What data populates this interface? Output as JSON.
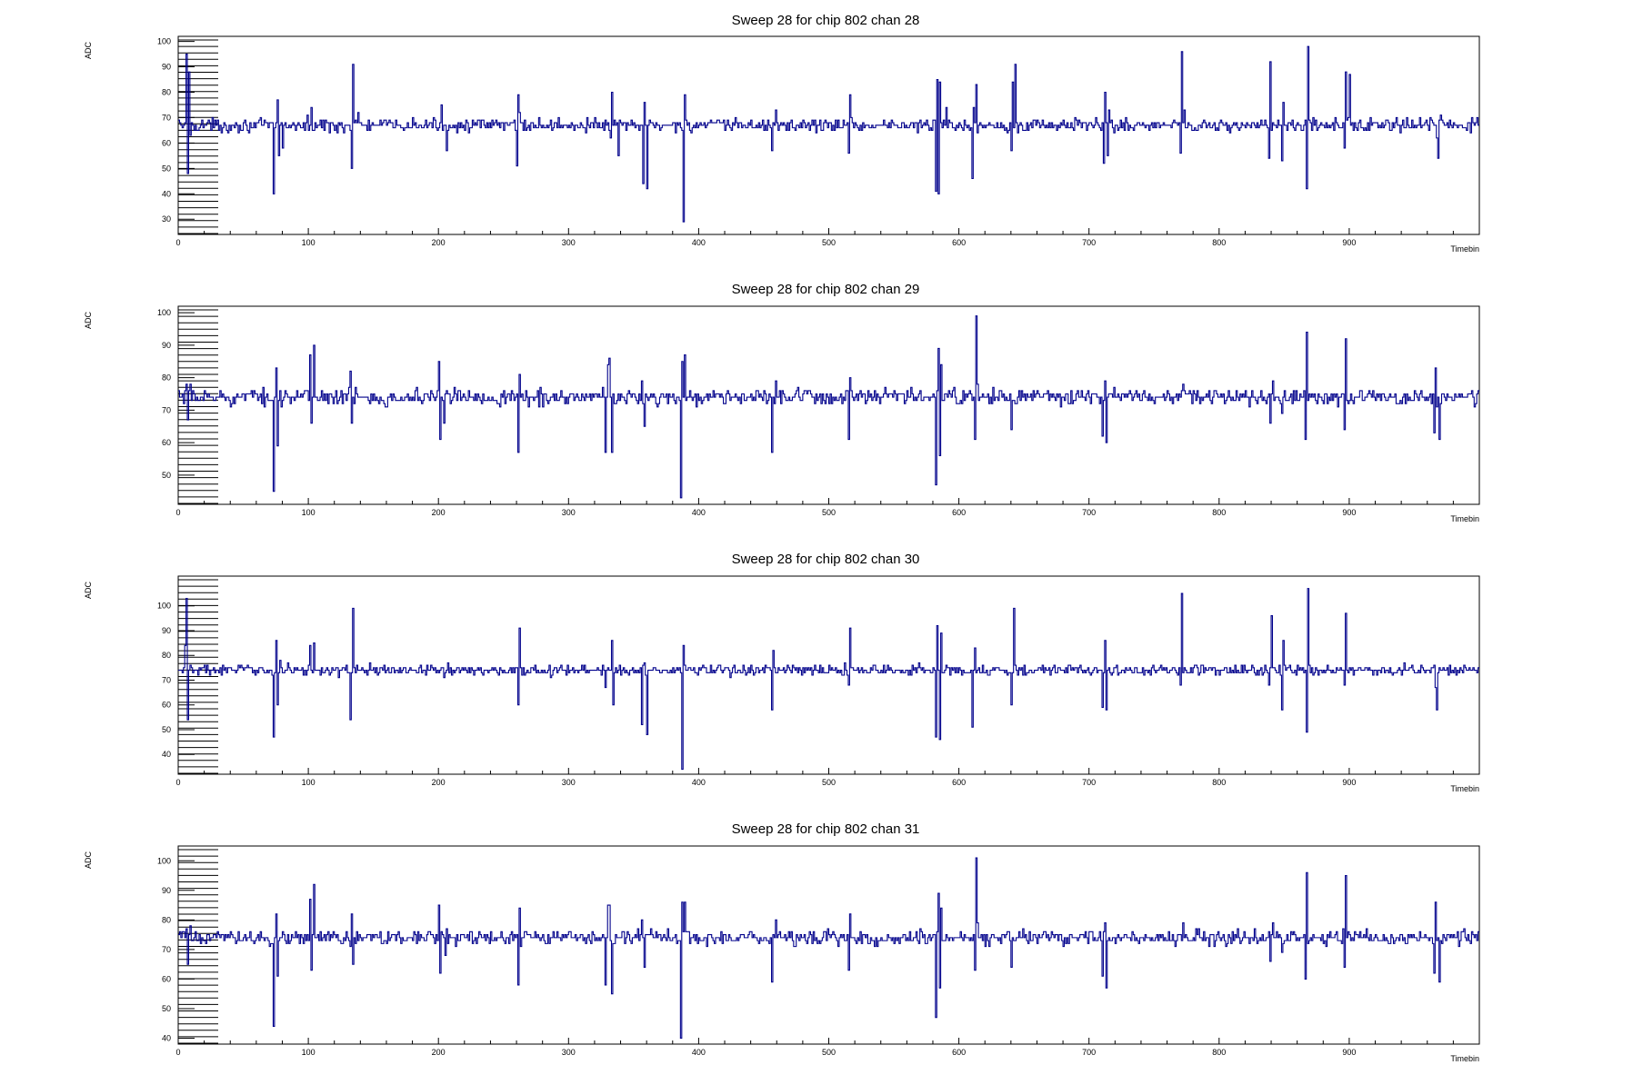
{
  "chart_data": [
    {
      "type": "line",
      "title": "Sweep 28 for chip 802 chan 28",
      "xlabel": "Timebin",
      "ylabel": "ADC",
      "xlim": [
        0,
        1000
      ],
      "ylim": [
        24,
        102
      ],
      "xticks": [
        0,
        100,
        200,
        300,
        400,
        500,
        600,
        700,
        800,
        900
      ],
      "yticks": [
        30,
        40,
        50,
        60,
        70,
        80,
        90,
        100
      ],
      "baseline": 67,
      "noise": 1.6,
      "series": [
        {
          "color": "#00008b",
          "spikes": [
            [
              6,
              95
            ],
            [
              7,
              48
            ],
            [
              8,
              88
            ],
            [
              9,
              63
            ],
            [
              73,
              40
            ],
            [
              74,
              66
            ],
            [
              76,
              77
            ],
            [
              77,
              55
            ],
            [
              80,
              58
            ],
            [
              102,
              74
            ],
            [
              133,
              50
            ],
            [
              134,
              91
            ],
            [
              138,
              72
            ],
            [
              202,
              75
            ],
            [
              206,
              57
            ],
            [
              260,
              51
            ],
            [
              261,
              79
            ],
            [
              262,
              72
            ],
            [
              332,
              62
            ],
            [
              333,
              80
            ],
            [
              338,
              55
            ],
            [
              357,
              44
            ],
            [
              358,
              76
            ],
            [
              360,
              42
            ],
            [
              388,
              29
            ],
            [
              389,
              79
            ],
            [
              456,
              57
            ],
            [
              459,
              73
            ],
            [
              515,
              56
            ],
            [
              516,
              79
            ],
            [
              582,
              41
            ],
            [
              583,
              85
            ],
            [
              584,
              40
            ],
            [
              585,
              84
            ],
            [
              590,
              74
            ],
            [
              610,
              46
            ],
            [
              611,
              74
            ],
            [
              613,
              83
            ],
            [
              640,
              57
            ],
            [
              641,
              84
            ],
            [
              643,
              91
            ],
            [
              711,
              52
            ],
            [
              712,
              80
            ],
            [
              714,
              55
            ],
            [
              715,
              73
            ],
            [
              770,
              56
            ],
            [
              771,
              96
            ],
            [
              773,
              73
            ],
            [
              838,
              54
            ],
            [
              839,
              92
            ],
            [
              848,
              53
            ],
            [
              849,
              76
            ],
            [
              867,
              42
            ],
            [
              868,
              98
            ],
            [
              896,
              58
            ],
            [
              897,
              88
            ],
            [
              900,
              87
            ],
            [
              967,
              62
            ],
            [
              968,
              54
            ],
            [
              970,
              71
            ]
          ]
        }
      ]
    },
    {
      "type": "line",
      "title": "Sweep 28 for chip 802 chan 29",
      "xlabel": "Timebin",
      "ylabel": "ADC",
      "xlim": [
        0,
        1000
      ],
      "ylim": [
        41,
        102
      ],
      "xticks": [
        0,
        100,
        200,
        300,
        400,
        500,
        600,
        700,
        800,
        900
      ],
      "yticks": [
        50,
        60,
        70,
        80,
        90,
        100
      ],
      "baseline": 74,
      "noise": 1.5,
      "series": [
        {
          "color": "#00008b",
          "spikes": [
            [
              6,
              78
            ],
            [
              7,
              67
            ],
            [
              9,
              78
            ],
            [
              73,
              45
            ],
            [
              75,
              83
            ],
            [
              76,
              59
            ],
            [
              101,
              87
            ],
            [
              102,
              66
            ],
            [
              104,
              90
            ],
            [
              132,
              82
            ],
            [
              133,
              66
            ],
            [
              200,
              85
            ],
            [
              201,
              61
            ],
            [
              204,
              66
            ],
            [
              261,
              57
            ],
            [
              262,
              81
            ],
            [
              328,
              57
            ],
            [
              330,
              84
            ],
            [
              331,
              86
            ],
            [
              333,
              57
            ],
            [
              356,
              79
            ],
            [
              358,
              65
            ],
            [
              386,
              43
            ],
            [
              387,
              85
            ],
            [
              389,
              87
            ],
            [
              456,
              57
            ],
            [
              459,
              79
            ],
            [
              515,
              61
            ],
            [
              516,
              80
            ],
            [
              582,
              47
            ],
            [
              584,
              89
            ],
            [
              585,
              56
            ],
            [
              586,
              84
            ],
            [
              612,
              61
            ],
            [
              613,
              99
            ],
            [
              614,
              78
            ],
            [
              640,
              64
            ],
            [
              710,
              62
            ],
            [
              712,
              79
            ],
            [
              713,
              60
            ],
            [
              772,
              78
            ],
            [
              839,
              66
            ],
            [
              841,
              79
            ],
            [
              848,
              69
            ],
            [
              866,
              61
            ],
            [
              867,
              94
            ],
            [
              896,
              64
            ],
            [
              897,
              92
            ],
            [
              965,
              63
            ],
            [
              966,
              83
            ],
            [
              969,
              61
            ]
          ]
        }
      ]
    },
    {
      "type": "line",
      "title": "Sweep 28 for chip 802 chan 30",
      "xlabel": "Timebin",
      "ylabel": "ADC",
      "xlim": [
        0,
        1000
      ],
      "ylim": [
        32,
        112
      ],
      "xticks": [
        0,
        100,
        200,
        300,
        400,
        500,
        600,
        700,
        800,
        900
      ],
      "yticks": [
        40,
        50,
        60,
        70,
        80,
        90,
        100
      ],
      "baseline": 74,
      "noise": 1.3,
      "series": [
        {
          "color": "#00008b",
          "spikes": [
            [
              5,
              84
            ],
            [
              6,
              103
            ],
            [
              7,
              54
            ],
            [
              9,
              76
            ],
            [
              73,
              47
            ],
            [
              75,
              86
            ],
            [
              76,
              60
            ],
            [
              78,
              78
            ],
            [
              101,
              84
            ],
            [
              104,
              85
            ],
            [
              132,
              54
            ],
            [
              134,
              99
            ],
            [
              261,
              60
            ],
            [
              262,
              91
            ],
            [
              328,
              67
            ],
            [
              333,
              86
            ],
            [
              334,
              60
            ],
            [
              356,
              52
            ],
            [
              358,
              77
            ],
            [
              360,
              48
            ],
            [
              387,
              34
            ],
            [
              388,
              84
            ],
            [
              456,
              58
            ],
            [
              457,
              82
            ],
            [
              515,
              68
            ],
            [
              516,
              91
            ],
            [
              582,
              47
            ],
            [
              583,
              92
            ],
            [
              585,
              46
            ],
            [
              586,
              89
            ],
            [
              610,
              51
            ],
            [
              612,
              83
            ],
            [
              640,
              60
            ],
            [
              642,
              99
            ],
            [
              710,
              59
            ],
            [
              712,
              86
            ],
            [
              713,
              58
            ],
            [
              770,
              68
            ],
            [
              771,
              105
            ],
            [
              838,
              68
            ],
            [
              840,
              96
            ],
            [
              848,
              58
            ],
            [
              849,
              86
            ],
            [
              867,
              49
            ],
            [
              868,
              107
            ],
            [
              896,
              68
            ],
            [
              897,
              97
            ],
            [
              966,
              67
            ],
            [
              967,
              58
            ]
          ]
        }
      ]
    },
    {
      "type": "line",
      "title": "Sweep 28 for chip 802 chan 31",
      "xlabel": "Timebin",
      "ylabel": "ADC",
      "xlim": [
        0,
        1000
      ],
      "ylim": [
        38,
        105
      ],
      "xticks": [
        0,
        100,
        200,
        300,
        400,
        500,
        600,
        700,
        800,
        900
      ],
      "yticks": [
        40,
        50,
        60,
        70,
        80,
        90,
        100
      ],
      "baseline": 74,
      "noise": 1.5,
      "series": [
        {
          "color": "#00008b",
          "spikes": [
            [
              6,
              77
            ],
            [
              7,
              65
            ],
            [
              9,
              78
            ],
            [
              73,
              44
            ],
            [
              75,
              82
            ],
            [
              76,
              61
            ],
            [
              101,
              87
            ],
            [
              102,
              63
            ],
            [
              104,
              92
            ],
            [
              133,
              82
            ],
            [
              134,
              65
            ],
            [
              200,
              85
            ],
            [
              201,
              62
            ],
            [
              205,
              68
            ],
            [
              261,
              58
            ],
            [
              262,
              84
            ],
            [
              328,
              58
            ],
            [
              330,
              85
            ],
            [
              331,
              85
            ],
            [
              333,
              55
            ],
            [
              356,
              80
            ],
            [
              358,
              64
            ],
            [
              386,
              40
            ],
            [
              387,
              86
            ],
            [
              389,
              86
            ],
            [
              456,
              59
            ],
            [
              459,
              80
            ],
            [
              515,
              63
            ],
            [
              516,
              82
            ],
            [
              582,
              47
            ],
            [
              584,
              89
            ],
            [
              585,
              57
            ],
            [
              586,
              84
            ],
            [
              612,
              63
            ],
            [
              613,
              101
            ],
            [
              614,
              79
            ],
            [
              640,
              64
            ],
            [
              710,
              61
            ],
            [
              712,
              79
            ],
            [
              713,
              57
            ],
            [
              772,
              79
            ],
            [
              839,
              66
            ],
            [
              841,
              79
            ],
            [
              848,
              69
            ],
            [
              866,
              60
            ],
            [
              867,
              96
            ],
            [
              896,
              64
            ],
            [
              897,
              95
            ],
            [
              965,
              62
            ],
            [
              966,
              86
            ],
            [
              969,
              59
            ]
          ]
        }
      ]
    }
  ]
}
